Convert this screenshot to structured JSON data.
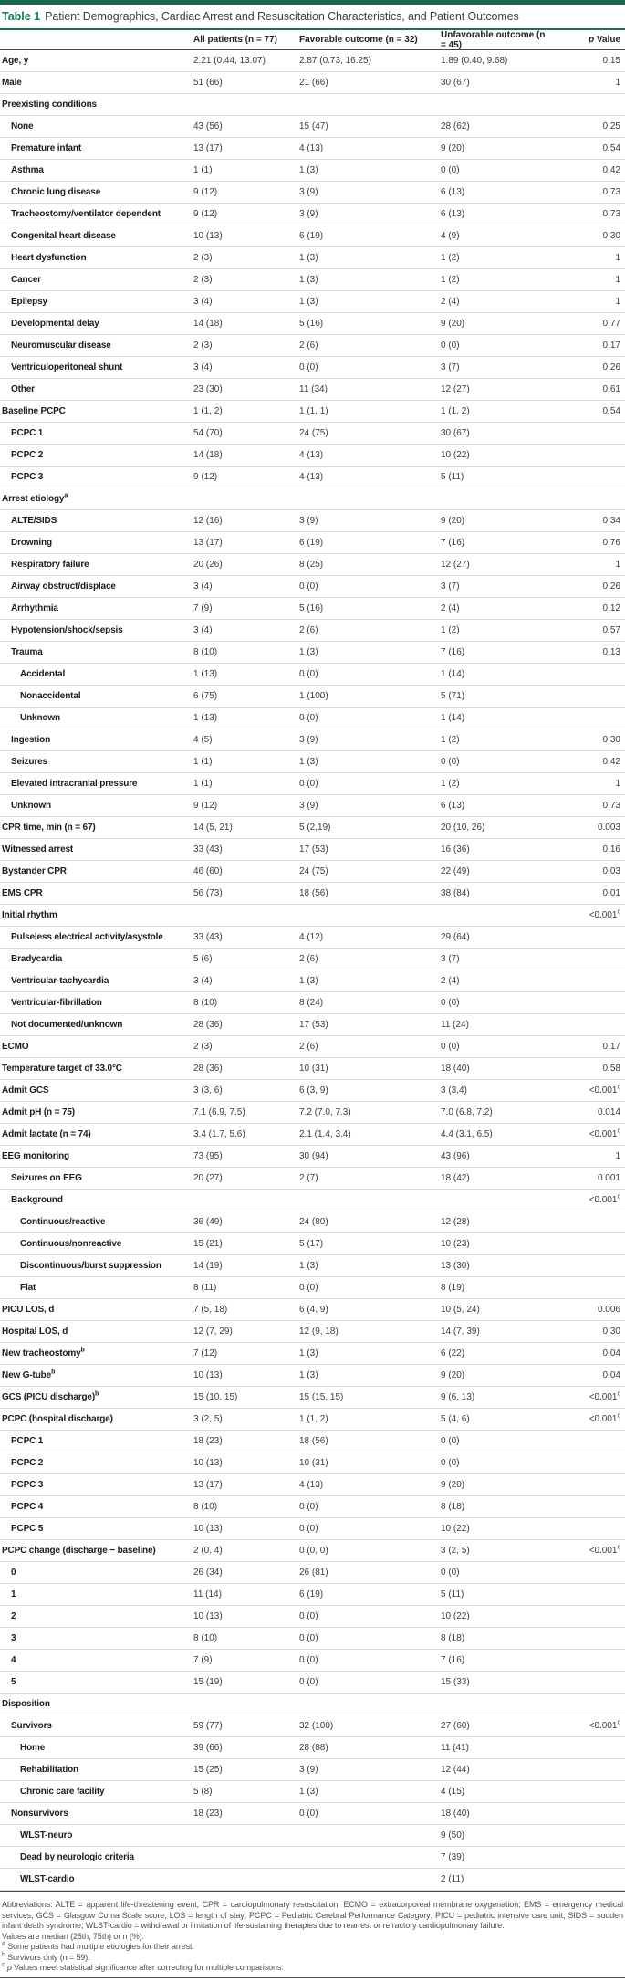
{
  "header": {
    "table_label": "Table 1",
    "title": "Patient Demographics, Cardiac Arrest and Resuscitation Characteristics, and Patient Outcomes"
  },
  "columns": {
    "col1": "All patients (n = 77)",
    "col2": "Favorable outcome (n = 32)",
    "col3": "Unfavorable outcome (n = 45)",
    "p_italic": "p",
    "p_rest": " Value"
  },
  "colors": {
    "brand_green": "#17784f",
    "top_bar_green": "#17694a",
    "rule_dark": "#4a4a4a",
    "row_rule": "#d8d8d8"
  },
  "rows": [
    {
      "l": "Age, y",
      "i": 0,
      "v": [
        "2.21 (0.44, 13.07)",
        "2.87 (0.73, 16.25)",
        "1.89 (0.40, 9.68)"
      ],
      "p": "0.15"
    },
    {
      "l": "Male",
      "i": 0,
      "v": [
        "51 (66)",
        "21 (66)",
        "30 (67)"
      ],
      "p": "1"
    },
    {
      "l": "Preexisting conditions",
      "i": 0,
      "v": [
        "",
        "",
        ""
      ],
      "p": ""
    },
    {
      "l": "None",
      "i": 1,
      "v": [
        "43 (56)",
        "15 (47)",
        "28 (62)"
      ],
      "p": "0.25"
    },
    {
      "l": "Premature infant",
      "i": 1,
      "v": [
        "13 (17)",
        "4 (13)",
        "9 (20)"
      ],
      "p": "0.54"
    },
    {
      "l": "Asthma",
      "i": 1,
      "v": [
        "1 (1)",
        "1 (3)",
        "0 (0)"
      ],
      "p": "0.42"
    },
    {
      "l": "Chronic lung disease",
      "i": 1,
      "v": [
        "9 (12)",
        "3 (9)",
        "6 (13)"
      ],
      "p": "0.73"
    },
    {
      "l": "Tracheostomy/ventilator dependent",
      "i": 1,
      "v": [
        "9 (12)",
        "3 (9)",
        "6 (13)"
      ],
      "p": "0.73"
    },
    {
      "l": "Congenital heart disease",
      "i": 1,
      "v": [
        "10 (13)",
        "6 (19)",
        "4 (9)"
      ],
      "p": "0.30"
    },
    {
      "l": "Heart dysfunction",
      "i": 1,
      "v": [
        "2 (3)",
        "1 (3)",
        "1 (2)"
      ],
      "p": "1"
    },
    {
      "l": "Cancer",
      "i": 1,
      "v": [
        "2 (3)",
        "1 (3)",
        "1 (2)"
      ],
      "p": "1"
    },
    {
      "l": "Epilepsy",
      "i": 1,
      "v": [
        "3 (4)",
        "1 (3)",
        "2 (4)"
      ],
      "p": "1"
    },
    {
      "l": "Developmental delay",
      "i": 1,
      "v": [
        "14 (18)",
        "5 (16)",
        "9 (20)"
      ],
      "p": "0.77"
    },
    {
      "l": "Neuromuscular disease",
      "i": 1,
      "v": [
        "2 (3)",
        "2 (6)",
        "0 (0)"
      ],
      "p": "0.17"
    },
    {
      "l": "Ventriculoperitoneal shunt",
      "i": 1,
      "v": [
        "3 (4)",
        "0 (0)",
        "3 (7)"
      ],
      "p": "0.26"
    },
    {
      "l": "Other",
      "i": 1,
      "v": [
        "23 (30)",
        "11 (34)",
        "12 (27)"
      ],
      "p": "0.61"
    },
    {
      "l": "Baseline PCPC",
      "i": 0,
      "v": [
        "1 (1, 2)",
        "1 (1, 1)",
        "1 (1, 2)"
      ],
      "p": "0.54"
    },
    {
      "l": "PCPC 1",
      "i": 1,
      "v": [
        "54 (70)",
        "24 (75)",
        "30 (67)"
      ],
      "p": ""
    },
    {
      "l": "PCPC 2",
      "i": 1,
      "v": [
        "14 (18)",
        "4 (13)",
        "10 (22)"
      ],
      "p": ""
    },
    {
      "l": "PCPC 3",
      "i": 1,
      "v": [
        "9 (12)",
        "4 (13)",
        "5 (11)"
      ],
      "p": ""
    },
    {
      "l": "Arrest etiology",
      "s": "a",
      "i": 0,
      "v": [
        "",
        "",
        ""
      ],
      "p": ""
    },
    {
      "l": "ALTE/SIDS",
      "i": 1,
      "v": [
        "12 (16)",
        "3 (9)",
        "9 (20)"
      ],
      "p": "0.34"
    },
    {
      "l": "Drowning",
      "i": 1,
      "v": [
        "13 (17)",
        "6 (19)",
        "7 (16)"
      ],
      "p": "0.76"
    },
    {
      "l": "Respiratory failure",
      "i": 1,
      "v": [
        "20 (26)",
        "8 (25)",
        "12 (27)"
      ],
      "p": "1"
    },
    {
      "l": "Airway obstruct/displace",
      "i": 1,
      "v": [
        "3 (4)",
        "0 (0)",
        "3 (7)"
      ],
      "p": "0.26"
    },
    {
      "l": "Arrhythmia",
      "i": 1,
      "v": [
        "7 (9)",
        "5 (16)",
        "2 (4)"
      ],
      "p": "0.12"
    },
    {
      "l": "Hypotension/shock/sepsis",
      "i": 1,
      "v": [
        "3 (4)",
        "2 (6)",
        "1 (2)"
      ],
      "p": "0.57"
    },
    {
      "l": "Trauma",
      "i": 1,
      "v": [
        "8 (10)",
        "1 (3)",
        "7 (16)"
      ],
      "p": "0.13"
    },
    {
      "l": "Accidental",
      "i": 2,
      "v": [
        "1 (13)",
        "0 (0)",
        "1 (14)"
      ],
      "p": ""
    },
    {
      "l": "Nonaccidental",
      "i": 2,
      "v": [
        "6 (75)",
        "1 (100)",
        "5 (71)"
      ],
      "p": ""
    },
    {
      "l": "Unknown",
      "i": 2,
      "v": [
        "1 (13)",
        "0 (0)",
        "1 (14)"
      ],
      "p": ""
    },
    {
      "l": "Ingestion",
      "i": 1,
      "v": [
        "4 (5)",
        "3 (9)",
        "1 (2)"
      ],
      "p": "0.30"
    },
    {
      "l": "Seizures",
      "i": 1,
      "v": [
        "1 (1)",
        "1 (3)",
        "0 (0)"
      ],
      "p": "0.42"
    },
    {
      "l": "Elevated intracranial pressure",
      "i": 1,
      "v": [
        "1 (1)",
        "0 (0)",
        "1 (2)"
      ],
      "p": "1"
    },
    {
      "l": "Unknown",
      "i": 1,
      "v": [
        "9 (12)",
        "3 (9)",
        "6 (13)"
      ],
      "p": "0.73"
    },
    {
      "l": "CPR time, min (n = 67)",
      "i": 0,
      "v": [
        "14 (5, 21)",
        "5 (2,19)",
        "20 (10, 26)"
      ],
      "p": "0.003"
    },
    {
      "l": "Witnessed arrest",
      "i": 0,
      "v": [
        "33 (43)",
        "17 (53)",
        "16 (36)"
      ],
      "p": "0.16"
    },
    {
      "l": "Bystander CPR",
      "i": 0,
      "v": [
        "46 (60)",
        "24 (75)",
        "22 (49)"
      ],
      "p": "0.03"
    },
    {
      "l": "EMS CPR",
      "i": 0,
      "v": [
        "56 (73)",
        "18 (56)",
        "38 (84)"
      ],
      "p": "0.01"
    },
    {
      "l": "Initial rhythm",
      "i": 0,
      "v": [
        "",
        "",
        ""
      ],
      "p": "<0.001",
      "ps": "c"
    },
    {
      "l": "Pulseless electrical activity/asystole",
      "i": 1,
      "v": [
        "33 (43)",
        "4 (12)",
        "29 (64)"
      ],
      "p": ""
    },
    {
      "l": "Bradycardia",
      "i": 1,
      "v": [
        "5 (6)",
        "2 (6)",
        "3 (7)"
      ],
      "p": ""
    },
    {
      "l": "Ventricular-tachycardia",
      "i": 1,
      "v": [
        "3 (4)",
        "1 (3)",
        "2 (4)"
      ],
      "p": ""
    },
    {
      "l": "Ventricular-fibrillation",
      "i": 1,
      "v": [
        "8 (10)",
        "8 (24)",
        "0 (0)"
      ],
      "p": ""
    },
    {
      "l": "Not documented/unknown",
      "i": 1,
      "v": [
        "28 (36)",
        "17 (53)",
        "11 (24)"
      ],
      "p": ""
    },
    {
      "l": "ECMO",
      "i": 0,
      "v": [
        "2 (3)",
        "2 (6)",
        "0 (0)"
      ],
      "p": "0.17"
    },
    {
      "l": "Temperature target of 33.0°C",
      "i": 0,
      "v": [
        "28 (36)",
        "10 (31)",
        "18 (40)"
      ],
      "p": "0.58"
    },
    {
      "l": "Admit GCS",
      "i": 0,
      "v": [
        "3 (3, 6)",
        "6 (3, 9)",
        "3 (3,4)"
      ],
      "p": "<0.001",
      "ps": "c"
    },
    {
      "l": "Admit pH (n = 75)",
      "i": 0,
      "v": [
        "7.1 (6.9, 7.5)",
        "7.2 (7.0, 7.3)",
        "7.0 (6.8, 7.2)"
      ],
      "p": "0.014"
    },
    {
      "l": "Admit lactate (n = 74)",
      "i": 0,
      "v": [
        "3.4 (1.7, 5.6)",
        "2.1 (1.4, 3.4)",
        "4.4 (3.1, 6.5)"
      ],
      "p": "<0.001",
      "ps": "c"
    },
    {
      "l": "EEG monitoring",
      "i": 0,
      "v": [
        "73 (95)",
        "30 (94)",
        "43 (96)"
      ],
      "p": "1"
    },
    {
      "l": "Seizures on EEG",
      "i": 1,
      "v": [
        "20 (27)",
        "2 (7)",
        "18 (42)"
      ],
      "p": "0.001"
    },
    {
      "l": "Background",
      "i": 1,
      "v": [
        "",
        "",
        ""
      ],
      "p": "<0.001",
      "ps": "c"
    },
    {
      "l": "Continuous/reactive",
      "i": 2,
      "v": [
        "36 (49)",
        "24 (80)",
        "12 (28)"
      ],
      "p": ""
    },
    {
      "l": "Continuous/nonreactive",
      "i": 2,
      "v": [
        "15 (21)",
        "5 (17)",
        "10 (23)"
      ],
      "p": ""
    },
    {
      "l": "Discontinuous/burst suppression",
      "i": 2,
      "v": [
        "14 (19)",
        "1 (3)",
        "13 (30)"
      ],
      "p": ""
    },
    {
      "l": "Flat",
      "i": 2,
      "v": [
        "8 (11)",
        "0 (0)",
        "8 (19)"
      ],
      "p": ""
    },
    {
      "l": "PICU LOS, d",
      "i": 0,
      "v": [
        "7 (5, 18)",
        "6 (4, 9)",
        "10 (5, 24)"
      ],
      "p": "0.006"
    },
    {
      "l": "Hospital LOS, d",
      "i": 0,
      "v": [
        "12 (7, 29)",
        "12 (9, 18)",
        "14 (7, 39)"
      ],
      "p": "0.30"
    },
    {
      "l": "New tracheostomy",
      "s": "b",
      "i": 0,
      "v": [
        "7 (12)",
        "1 (3)",
        "6 (22)"
      ],
      "p": "0.04"
    },
    {
      "l": "New G-tube",
      "s": "b",
      "i": 0,
      "v": [
        "10 (13)",
        "1 (3)",
        "9 (20)"
      ],
      "p": "0.04"
    },
    {
      "l": "GCS (PICU discharge)",
      "s": "b",
      "i": 0,
      "v": [
        "15 (10, 15)",
        "15 (15, 15)",
        "9 (6, 13)"
      ],
      "p": "<0.001",
      "ps": "c"
    },
    {
      "l": "PCPC (hospital discharge)",
      "i": 0,
      "v": [
        "3 (2, 5)",
        "1 (1, 2)",
        "5 (4, 6)"
      ],
      "p": "<0.001",
      "ps": "c"
    },
    {
      "l": "PCPC 1",
      "i": 1,
      "v": [
        "18 (23)",
        "18 (56)",
        "0 (0)"
      ],
      "p": ""
    },
    {
      "l": "PCPC 2",
      "i": 1,
      "v": [
        "10 (13)",
        "10 (31)",
        "0 (0)"
      ],
      "p": ""
    },
    {
      "l": "PCPC 3",
      "i": 1,
      "v": [
        "13 (17)",
        "4 (13)",
        "9 (20)"
      ],
      "p": ""
    },
    {
      "l": "PCPC 4",
      "i": 1,
      "v": [
        "8 (10)",
        "0 (0)",
        "8 (18)"
      ],
      "p": ""
    },
    {
      "l": "PCPC 5",
      "i": 1,
      "v": [
        "10 (13)",
        "0 (0)",
        "10 (22)"
      ],
      "p": ""
    },
    {
      "l": "PCPC change (discharge − baseline)",
      "i": 0,
      "v": [
        "2 (0, 4)",
        "0 (0, 0)",
        "3 (2, 5)"
      ],
      "p": "<0.001",
      "ps": "c"
    },
    {
      "l": "0",
      "i": 1,
      "v": [
        "26 (34)",
        "26 (81)",
        "0 (0)"
      ],
      "p": ""
    },
    {
      "l": "1",
      "i": 1,
      "v": [
        "11 (14)",
        "6 (19)",
        "5 (11)"
      ],
      "p": ""
    },
    {
      "l": "2",
      "i": 1,
      "v": [
        "10 (13)",
        "0 (0)",
        "10 (22)"
      ],
      "p": ""
    },
    {
      "l": "3",
      "i": 1,
      "v": [
        "8 (10)",
        "0 (0)",
        "8 (18)"
      ],
      "p": ""
    },
    {
      "l": "4",
      "i": 1,
      "v": [
        "7 (9)",
        "0 (0)",
        "7 (16)"
      ],
      "p": ""
    },
    {
      "l": "5",
      "i": 1,
      "v": [
        "15 (19)",
        "0 (0)",
        "15 (33)"
      ],
      "p": ""
    },
    {
      "l": "Disposition",
      "i": 0,
      "v": [
        "",
        "",
        ""
      ],
      "p": ""
    },
    {
      "l": "Survivors",
      "i": 1,
      "v": [
        "59 (77)",
        "32 (100)",
        "27 (60)"
      ],
      "p": "<0.001",
      "ps": "c"
    },
    {
      "l": "Home",
      "i": 2,
      "v": [
        "39 (66)",
        "28 (88)",
        "11 (41)"
      ],
      "p": ""
    },
    {
      "l": "Rehabilitation",
      "i": 2,
      "v": [
        "15 (25)",
        "3 (9)",
        "12 (44)"
      ],
      "p": ""
    },
    {
      "l": "Chronic care facility",
      "i": 2,
      "v": [
        "5 (8)",
        "1 (3)",
        "4 (15)"
      ],
      "p": ""
    },
    {
      "l": "Nonsurvivors",
      "i": 1,
      "v": [
        "18 (23)",
        "0 (0)",
        "18 (40)"
      ],
      "p": ""
    },
    {
      "l": "WLST-neuro",
      "i": 2,
      "v": [
        "",
        "",
        "9 (50)"
      ],
      "p": ""
    },
    {
      "l": "Dead by neurologic criteria",
      "i": 2,
      "v": [
        "",
        "",
        "7 (39)"
      ],
      "p": ""
    },
    {
      "l": "WLST-cardio",
      "i": 2,
      "v": [
        "",
        "",
        "2 (11)"
      ],
      "p": ""
    }
  ],
  "footnotes": {
    "abbreviations": "Abbreviations: ALTE = apparent life-threatening event; CPR = cardiopulmonary resuscitation; ECMO = extracorporeal membrane oxygenation; EMS = emergency medical services; GCS = Glasgow Coma Scale score; LOS = length of stay; PCPC = Pediatric Cerebral Performance Category; PICU = pediatric intensive care unit; SIDS = sudden infant death syndrome; WLST-cardio = withdrawal or limitation of life-sustaining therapies due to rearrest or refractory cardiopulmonary failure.",
    "values_note": "Values are median (25th, 75th) or n (%).",
    "a_marker": "a",
    "a_text": "Some patients had multiple etiologies for their arrest.",
    "b_marker": "b",
    "b_text": "Survivors only (n = 59).",
    "c_marker": "c",
    "c_italic": "p",
    "c_text": " Values meet statistical significance after correcting for multiple comparisons."
  }
}
